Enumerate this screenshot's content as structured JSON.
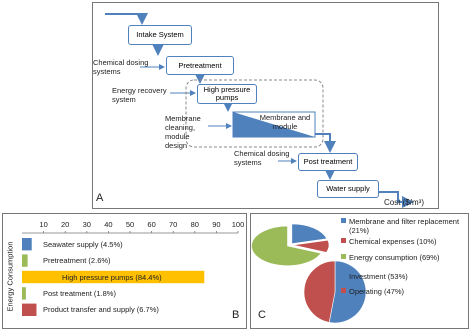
{
  "diagram": {
    "panel_label": "A",
    "nodes": [
      "Intake System",
      "Pretreatment",
      "High pressure pumps",
      "Membrane and module",
      "Post treatment",
      "Water supply"
    ],
    "inputs": [
      "Chemical dosing systems",
      "Energy recovery system",
      "Membrane cleaning, module design",
      "Chemical dosing systems"
    ],
    "axis_label": "Cost ($/m³)"
  },
  "chart_data": [
    {
      "type": "bar",
      "orientation": "horizontal",
      "panel_label": "B",
      "ylabel": "Energy Consumption",
      "categories": [
        "Seawater supply (4.5%)",
        "Pretreatment (2.6%)",
        "High  pressure pumps (84.4%)",
        "Post treatment (1.8%)",
        "Product transfer and supply (6.7%)"
      ],
      "values": [
        4.5,
        2.6,
        84.4,
        1.8,
        6.7
      ],
      "colors": [
        "#4f81bd",
        "#9bbb59",
        "#ffc000",
        "#9bbb59",
        "#c0504d"
      ],
      "xlim": [
        0,
        100
      ],
      "xticks": [
        10,
        20,
        30,
        40,
        50,
        60,
        70,
        80,
        90,
        100
      ]
    },
    {
      "type": "pie",
      "panel_label": "C",
      "categories": [
        "Membrane and filter replacement (21%)",
        "Chemical expenses (10%)",
        "Energy consumption (69%)"
      ],
      "values": [
        21,
        10,
        69
      ],
      "colors": [
        "#4f81bd",
        "#c0504d",
        "#9bbb59"
      ]
    },
    {
      "type": "pie",
      "categories": [
        "Investment (53%)",
        "Operating (47%)"
      ],
      "values": [
        53,
        47
      ],
      "colors": [
        "#4f81bd",
        "#c0504d"
      ]
    }
  ]
}
